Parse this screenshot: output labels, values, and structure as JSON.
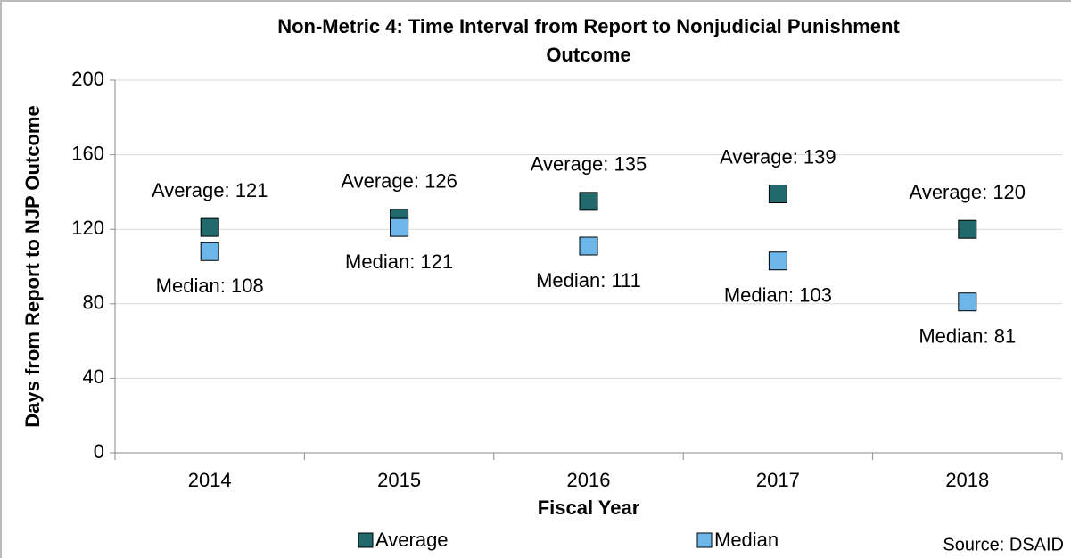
{
  "chart_data": {
    "type": "scatter",
    "title": "Non-Metric 4: Time Interval from Report to Nonjudicial Punishment Outcome",
    "x_label": "Fiscal Year",
    "y_label": "Days from Report to NJP Outcome",
    "source": "Source: DSAID",
    "categories": [
      "2014",
      "2015",
      "2016",
      "2017",
      "2018"
    ],
    "series": [
      {
        "name": "Average",
        "color": "#21696b",
        "values": [
          121,
          126,
          135,
          139,
          120
        ],
        "value_labels": [
          "Average: 121",
          "Average: 126",
          "Average: 135",
          "Average: 139",
          "Average: 120"
        ]
      },
      {
        "name": "Median",
        "color": "#6db6ea",
        "values": [
          108,
          121,
          111,
          103,
          81
        ],
        "value_labels": [
          "Median: 108",
          "Median: 121",
          "Median: 111",
          "Median: 103",
          "Median: 81"
        ]
      }
    ],
    "ylim": [
      0,
      200
    ],
    "yticks": [
      0,
      40,
      80,
      120,
      160,
      200
    ],
    "grid": true,
    "legend": "bottom"
  }
}
